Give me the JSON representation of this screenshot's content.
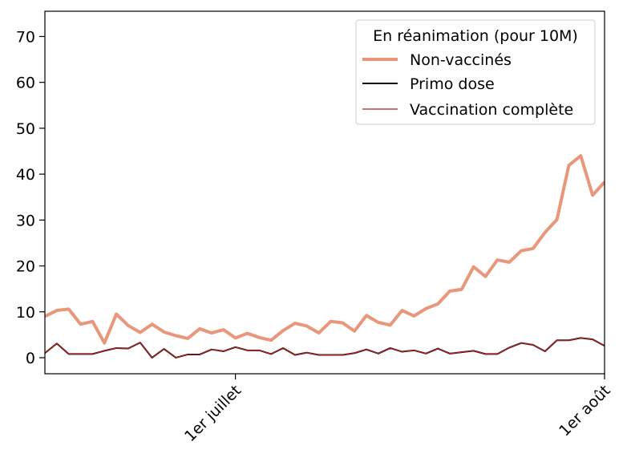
{
  "chart_data": {
    "type": "line",
    "title": "",
    "xlabel": "",
    "ylabel": "",
    "ylim": [
      -3.5,
      75.5
    ],
    "yticks": [
      0,
      10,
      20,
      30,
      40,
      50,
      60,
      70
    ],
    "x_start": "2021-06-15",
    "x_end": "2021-08-01",
    "xticks": [
      {
        "date": "2021-07-01",
        "label": "1er juillet"
      },
      {
        "date": "2021-08-01",
        "label": "1er août"
      }
    ],
    "legend": {
      "title": "En réanimation (pour 10M)",
      "placement": "top-right"
    },
    "series": [
      {
        "name": "Non-vaccinés",
        "color": "#e9967a",
        "width": 4,
        "values": [
          9.0,
          10.3,
          10.6,
          7.3,
          7.9,
          3.2,
          9.5,
          7.0,
          5.5,
          7.3,
          5.6,
          4.8,
          4.2,
          6.3,
          5.4,
          6.1,
          4.3,
          5.3,
          4.4,
          3.8,
          5.9,
          7.5,
          6.9,
          5.4,
          7.9,
          7.6,
          5.8,
          9.2,
          7.7,
          7.1,
          10.3,
          9.1,
          10.7,
          11.7,
          14.5,
          14.9,
          19.8,
          17.7,
          21.3,
          20.8,
          23.3,
          23.8,
          27.3,
          30.1,
          41.9,
          44.0,
          35.4,
          38.3
        ]
      },
      {
        "name": "Primo dose",
        "color": "#000000",
        "width": 2,
        "values": [
          1.0,
          3.1,
          0.8,
          0.8,
          0.8,
          1.5,
          2.1,
          2.0,
          3.3,
          0.0,
          1.9,
          0.0,
          0.7,
          0.7,
          1.8,
          1.4,
          2.3,
          1.6,
          1.6,
          0.8,
          2.1,
          0.6,
          1.1,
          0.6,
          0.6,
          0.6,
          1.0,
          1.8,
          0.9,
          2.1,
          1.3,
          1.6,
          0.9,
          2.0,
          0.9,
          1.2,
          1.5,
          0.8,
          0.8,
          2.2,
          3.2,
          2.8,
          1.4,
          3.8,
          3.8,
          4.3,
          4.0,
          2.6
        ]
      },
      {
        "name": "Vaccination complète",
        "color": "#b22222",
        "width": 1.3,
        "values": [
          1.0,
          3.1,
          0.8,
          0.8,
          0.8,
          1.5,
          2.1,
          2.0,
          3.3,
          0.0,
          1.9,
          0.0,
          0.7,
          0.7,
          1.8,
          1.4,
          2.3,
          1.6,
          1.6,
          0.8,
          2.1,
          0.6,
          1.1,
          0.6,
          0.6,
          0.6,
          1.0,
          1.8,
          0.9,
          2.1,
          1.3,
          1.6,
          0.9,
          2.0,
          0.9,
          1.2,
          1.5,
          0.8,
          0.8,
          2.2,
          3.2,
          2.8,
          1.4,
          3.8,
          3.8,
          4.3,
          4.0,
          2.6
        ]
      }
    ]
  }
}
